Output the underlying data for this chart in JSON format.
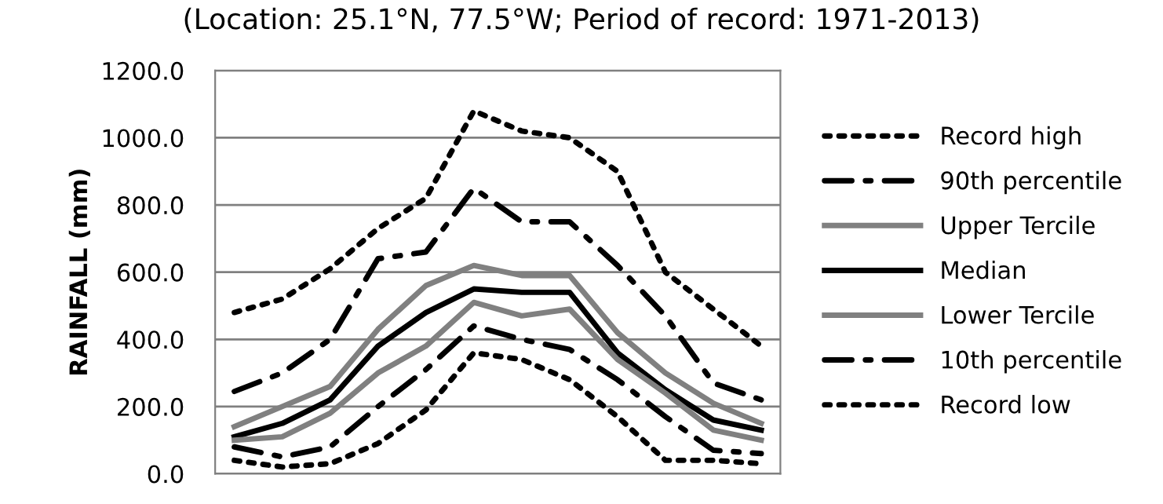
{
  "chart_data": {
    "type": "line",
    "title": "(Location: 25.1°N, 77.5°W; Period of record: 1971-2013)",
    "ylabel": "RAINFALL (mm)",
    "categories": [
      null,
      null,
      null,
      null,
      null,
      null,
      null,
      null,
      null,
      null,
      null,
      null
    ],
    "ylim": [
      0,
      1200
    ],
    "yticks": [
      {
        "value": 0,
        "label": "0.0"
      },
      {
        "value": 200,
        "label": "200.0"
      },
      {
        "value": 400,
        "label": "400.0"
      },
      {
        "value": 600,
        "label": "600.0"
      },
      {
        "value": 800,
        "label": "800.0"
      },
      {
        "value": 1000,
        "label": "1000.0"
      },
      {
        "value": 1200,
        "label": "1200.0"
      }
    ],
    "grid": "y",
    "legend": "right",
    "marker": "none",
    "series": [
      {
        "name": "Record high",
        "color": "#000000",
        "line_style": "dotted",
        "values": [
          480,
          520,
          610,
          730,
          820,
          1080,
          1020,
          1000,
          900,
          600,
          490,
          380
        ]
      },
      {
        "name": "90th percentile",
        "color": "#000000",
        "line_style": "dashdot",
        "values": [
          245,
          300,
          400,
          640,
          660,
          850,
          750,
          750,
          620,
          470,
          270,
          220
        ]
      },
      {
        "name": "Upper Tercile",
        "color": "#808080",
        "line_style": "solid",
        "values": [
          140,
          200,
          260,
          430,
          560,
          620,
          590,
          590,
          420,
          300,
          210,
          150
        ]
      },
      {
        "name": "Median",
        "color": "#000000",
        "line_style": "solid",
        "values": [
          110,
          150,
          220,
          380,
          480,
          550,
          540,
          540,
          360,
          250,
          160,
          130
        ]
      },
      {
        "name": "Lower Tercile",
        "color": "#808080",
        "line_style": "solid",
        "values": [
          100,
          110,
          180,
          300,
          380,
          510,
          470,
          490,
          340,
          240,
          130,
          100
        ]
      },
      {
        "name": "10th percentile",
        "color": "#000000",
        "line_style": "dashdot",
        "values": [
          80,
          50,
          80,
          200,
          310,
          440,
          400,
          370,
          280,
          170,
          70,
          60
        ]
      },
      {
        "name": "Record low",
        "color": "#000000",
        "line_style": "dotted",
        "values": [
          40,
          20,
          30,
          90,
          190,
          360,
          340,
          280,
          170,
          40,
          40,
          30
        ]
      }
    ]
  }
}
